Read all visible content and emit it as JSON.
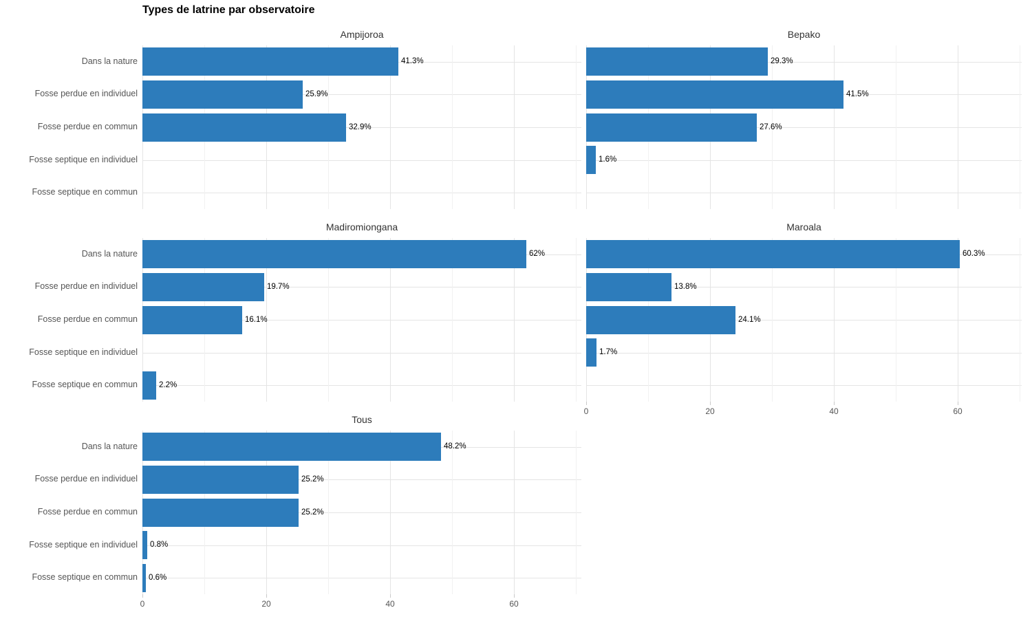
{
  "page": {
    "title": "Types de latrine par observatoire"
  },
  "chart_data": {
    "type": "bar",
    "orientation": "horizontal",
    "title": "Types de latrine par observatoire",
    "xlabel": "",
    "ylabel": "",
    "legend": "none",
    "grid": true,
    "categories": [
      "Dans la nature",
      "Fosse perdue en individuel",
      "Fosse perdue en commun",
      "Fosse septique en individuel",
      "Fosse septique en commun"
    ],
    "x_axis": {
      "major_ticks": [
        0,
        20,
        40,
        60
      ],
      "minor_ticks": [
        10,
        30,
        50,
        70
      ],
      "range": [
        0,
        71
      ]
    },
    "facets": [
      {
        "name": "Ampijoroa",
        "values": [
          41.3,
          25.9,
          32.9,
          null,
          null
        ],
        "value_labels": [
          "41.3%",
          "25.9%",
          "32.9%",
          null,
          null
        ]
      },
      {
        "name": "Bepako",
        "values": [
          29.3,
          41.5,
          27.6,
          1.6,
          null
        ],
        "value_labels": [
          "29.3%",
          "41.5%",
          "27.6%",
          "1.6%",
          null
        ]
      },
      {
        "name": "Madiromiongana",
        "values": [
          62,
          19.7,
          16.1,
          null,
          2.2
        ],
        "value_labels": [
          "62%",
          "19.7%",
          "16.1%",
          null,
          "2.2%"
        ]
      },
      {
        "name": "Maroala",
        "values": [
          60.3,
          13.8,
          24.1,
          1.7,
          null
        ],
        "value_labels": [
          "60.3%",
          "13.8%",
          "24.1%",
          "1.7%",
          null
        ]
      },
      {
        "name": "Tous",
        "values": [
          48.2,
          25.2,
          25.2,
          0.8,
          0.6
        ],
        "value_labels": [
          "48.2%",
          "25.2%",
          "25.2%",
          "0.8%",
          "0.6%"
        ]
      }
    ],
    "colors": {
      "bar": "#2D7CBB",
      "grid_major": "#E4E4E4",
      "grid_minor": "#F1F1F1",
      "axis_text": "#555555",
      "strip_text": "#333333",
      "value_text": "#000000",
      "tick_mark": "#C9C9C9",
      "background": "#FFFFFF"
    }
  }
}
